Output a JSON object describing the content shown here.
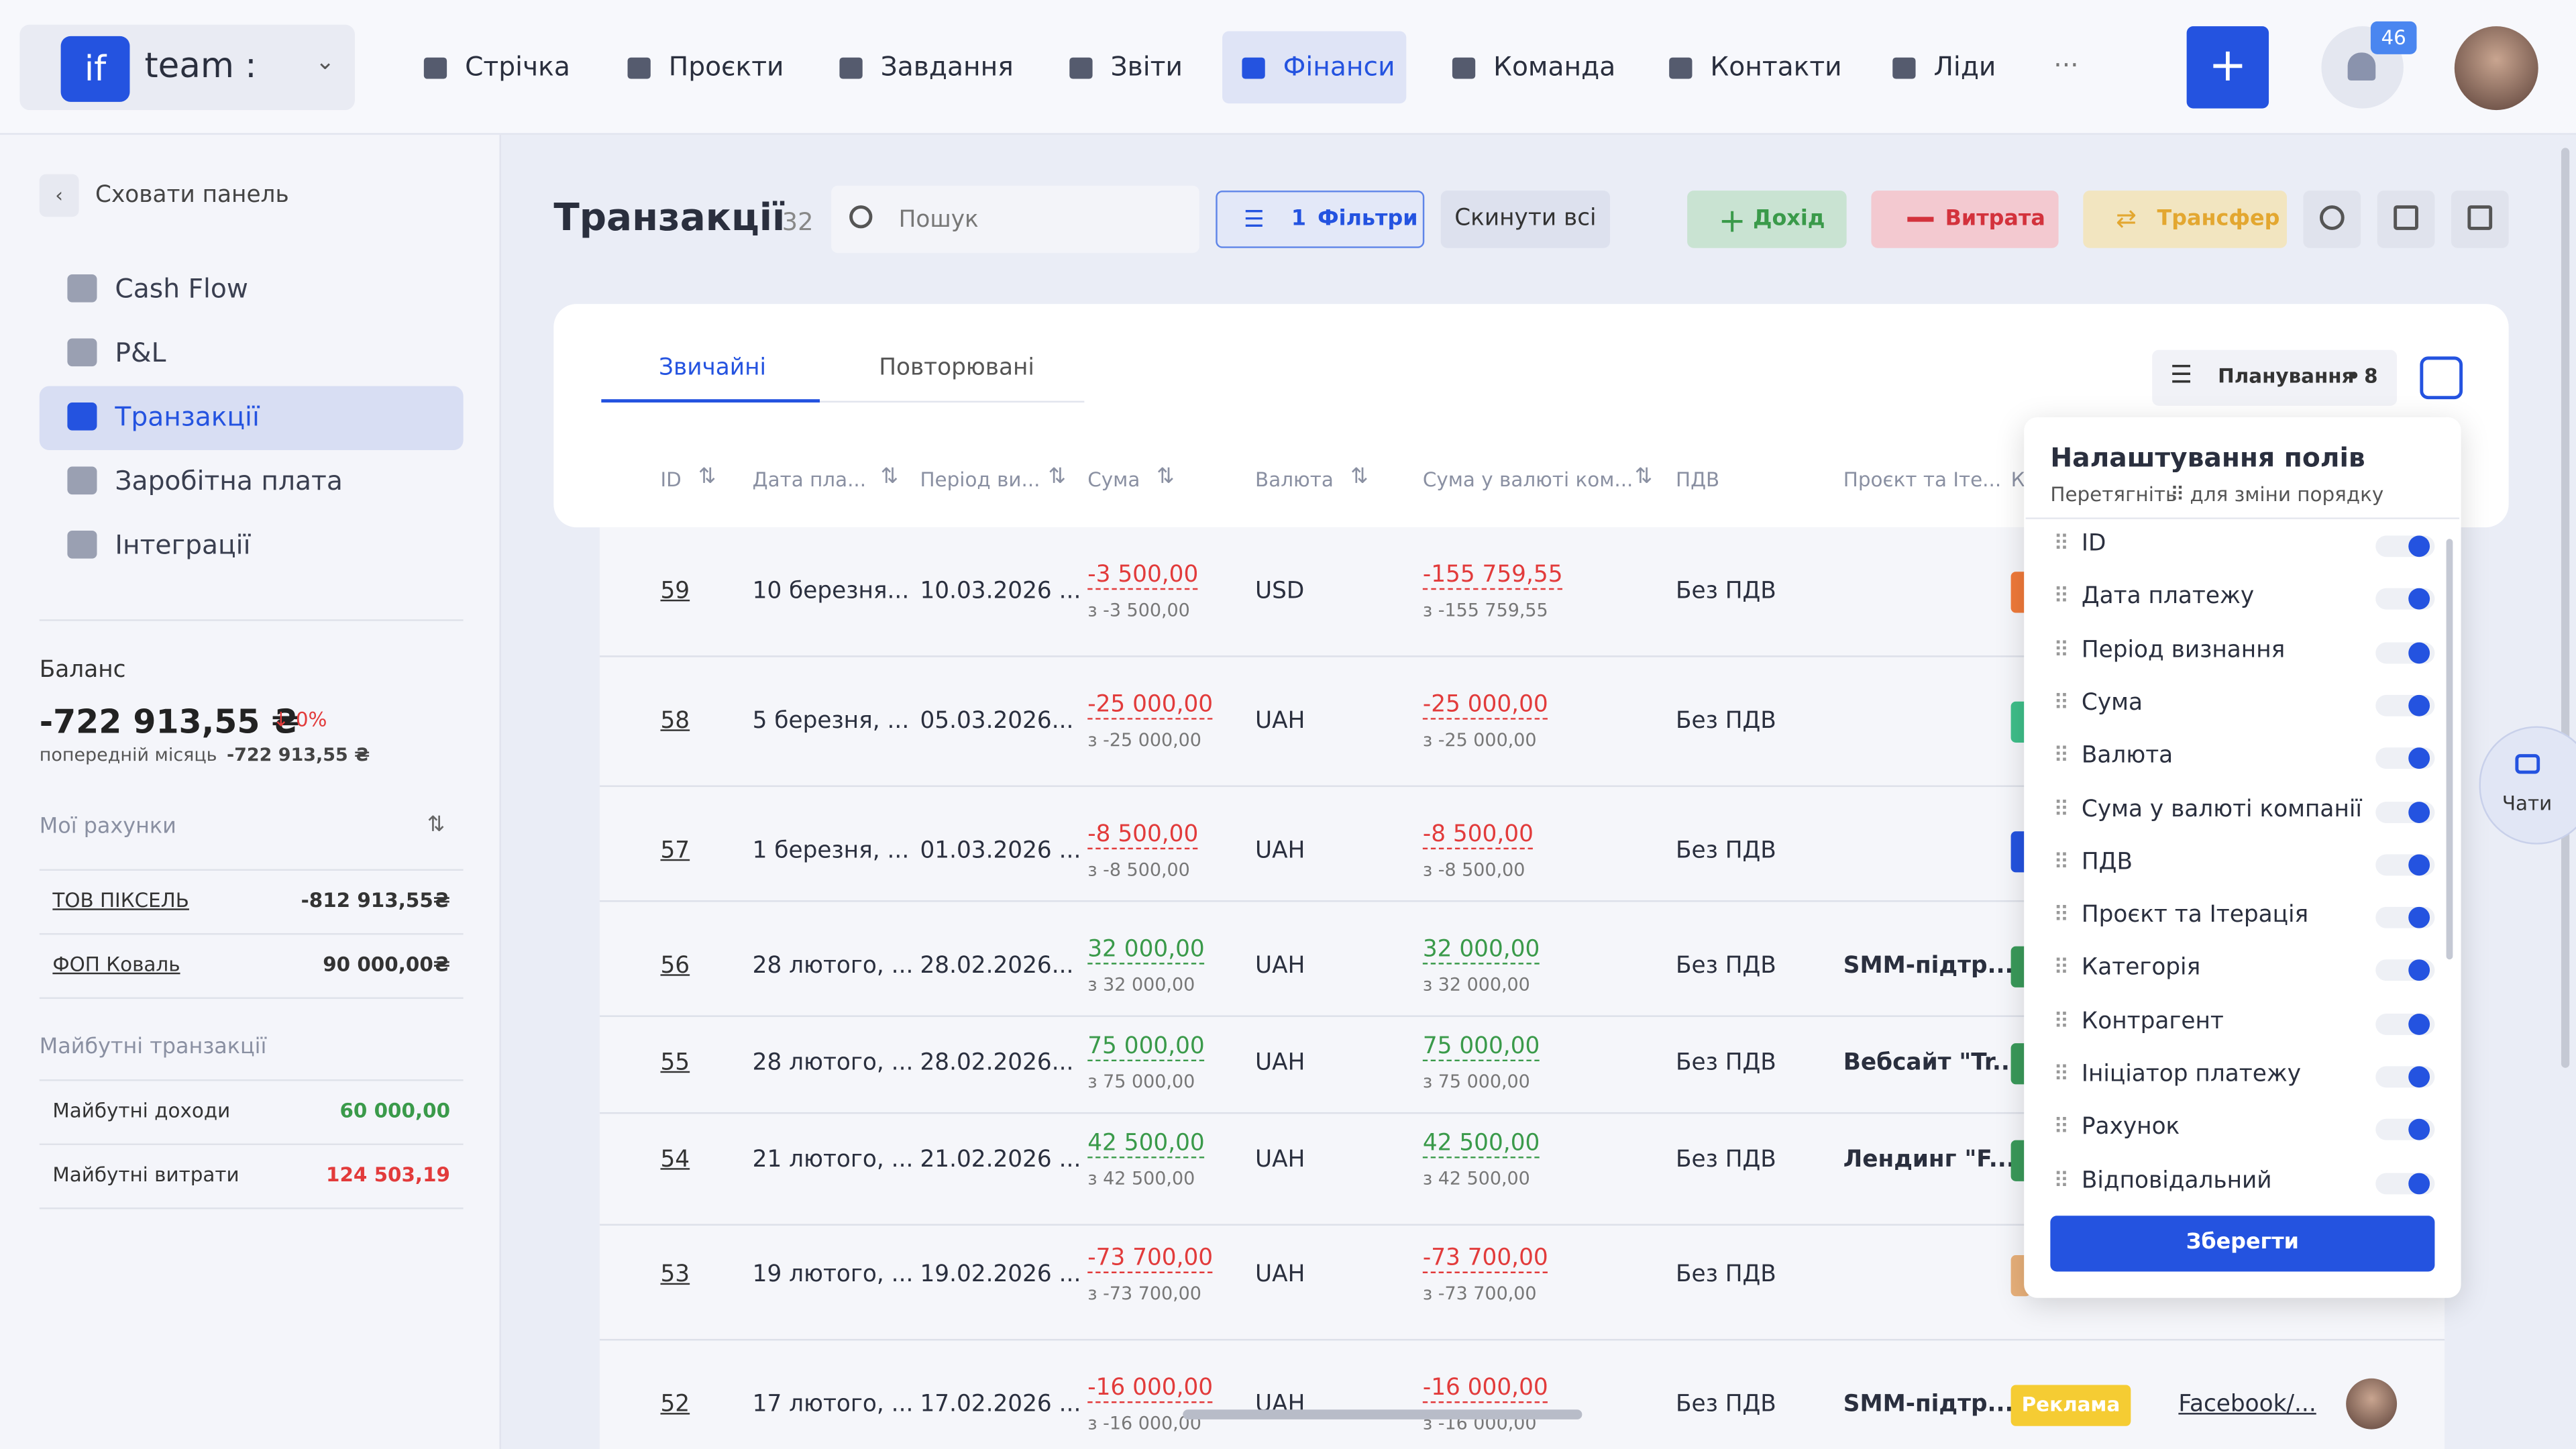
{
  "header": {
    "logo": "if",
    "team": "team :",
    "nav": [
      "Стрічка",
      "Проєкти",
      "Завдання",
      "Звіти",
      "Фінанси",
      "Команда",
      "Контакти",
      "Ліди"
    ],
    "more": "···",
    "add": "+",
    "notifications": "46"
  },
  "sidebar": {
    "hide": "Сховати панель",
    "menu": [
      "Cash Flow",
      "P&L",
      "Транзакції",
      "Заробітна плата",
      "Інтеграції"
    ],
    "balance_label": "Баланс",
    "balance": "-722 913,55 ₴",
    "balance_change": "0%",
    "prev_label": "попередній місяць",
    "prev_value": "-722 913,55 ₴",
    "accounts_title": "Мої рахунки",
    "accounts": [
      {
        "name": "ТОВ ПІКСЕЛЬ",
        "value": "-812 913,55₴"
      },
      {
        "name": "ФОП Коваль",
        "value": "90 000,00₴"
      }
    ],
    "future_title": "Майбутні транзакції",
    "future": [
      {
        "name": "Майбутні доходи",
        "value": "60 000,00"
      },
      {
        "name": "Майбутні витрати",
        "value": "124 503,19"
      }
    ]
  },
  "toolbar": {
    "title": "Транзакції",
    "count": "32",
    "search": "Пошук",
    "filters_count": "1",
    "filters": "Фільтри",
    "reset": "Скинути всі",
    "income": "Дохід",
    "expense": "Витрата",
    "transfer": "Трансфер"
  },
  "tabs": [
    "Звичайні",
    "Повторювані"
  ],
  "planning": {
    "label": "Планування",
    "count": "8"
  },
  "table": {
    "columns": [
      "ID",
      "Дата пла...",
      "Період ви...",
      "Сума",
      "Валюта",
      "Сума у валюті ком...",
      "ПДВ",
      "Проєкт та Іте...",
      "К"
    ],
    "rows": [
      {
        "id": "59",
        "date": "10 березня...",
        "period": "10.03.2026 ...",
        "sum": "-3 500,00",
        "sum_sub": "з -3 500,00",
        "currency": "USD",
        "company": "-155 759,55",
        "company_sub": "з -155 759,55",
        "vat": "Без ПДВ",
        "project": ""
      },
      {
        "id": "58",
        "date": "5 березня, ...",
        "period": "05.03.2026...",
        "sum": "-25 000,00",
        "sum_sub": "з -25 000,00",
        "currency": "UAH",
        "company": "-25 000,00",
        "company_sub": "з -25 000,00",
        "vat": "Без ПДВ",
        "project": ""
      },
      {
        "id": "57",
        "date": "1 березня, ...",
        "period": "01.03.2026 ...",
        "sum": "-8 500,00",
        "sum_sub": "з -8 500,00",
        "currency": "UAH",
        "company": "-8 500,00",
        "company_sub": "з -8 500,00",
        "vat": "Без ПДВ",
        "project": ""
      },
      {
        "id": "56",
        "date": "28 лютого, ...",
        "period": "28.02.2026...",
        "sum": "32 000,00",
        "sum_sub": "з 32 000,00",
        "currency": "UAH",
        "company": "32 000,00",
        "company_sub": "з 32 000,00",
        "vat": "Без ПДВ",
        "project": "SMM-підтр..."
      },
      {
        "id": "55",
        "date": "28 лютого, ...",
        "period": "28.02.2026...",
        "sum": "75 000,00",
        "sum_sub": "з 75 000,00",
        "currency": "UAH",
        "company": "75 000,00",
        "company_sub": "з 75 000,00",
        "vat": "Без ПДВ",
        "project": "Вебсайт \"Tr..."
      },
      {
        "id": "54",
        "date": "21 лютого, ...",
        "period": "21.02.2026 ...",
        "sum": "42 500,00",
        "sum_sub": "з 42 500,00",
        "currency": "UAH",
        "company": "42 500,00",
        "company_sub": "з 42 500,00",
        "vat": "Без ПДВ",
        "project": "Лендинг \"F..."
      },
      {
        "id": "53",
        "date": "19 лютого, ...",
        "period": "19.02.2026 ...",
        "sum": "-73 700,00",
        "sum_sub": "з -73 700,00",
        "currency": "UAH",
        "company": "-73 700,00",
        "company_sub": "з -73 700,00",
        "vat": "Без ПДВ",
        "project": ""
      },
      {
        "id": "52",
        "date": "17 лютого, ...",
        "period": "17.02.2026 ...",
        "sum": "-16 000,00",
        "sum_sub": "з -16 000,00",
        "currency": "UAH",
        "company": "-16 000,00",
        "company_sub": "з -16 000,00",
        "vat": "Без ПДВ",
        "project": "SMM-підтр...",
        "category": "Реклама",
        "counterparty": "Facebook/..."
      }
    ]
  },
  "panel": {
    "title": "Налаштування полів",
    "subtitle": [
      "Перетягніть",
      "для зміни порядку"
    ],
    "fields": [
      "ID",
      "Дата платежу",
      "Період визнання",
      "Сума",
      "Валюта",
      "Сума у валюті компанії",
      "ПДВ",
      "Проєкт та Ітерація",
      "Категорія",
      "Контрагент",
      "Ініціатор платежу",
      "Рахунок",
      "Відповідальний"
    ],
    "save": "Зберегти"
  },
  "chat": "Чати"
}
